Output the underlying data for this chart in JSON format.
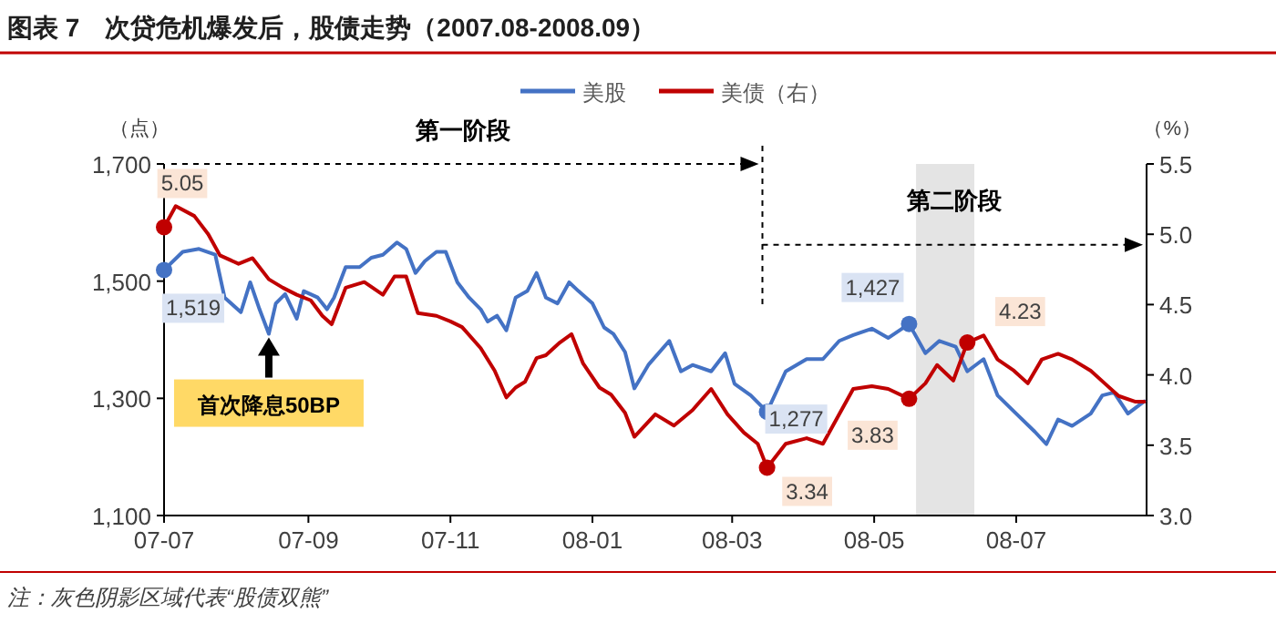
{
  "chart_data": {
    "type": "line",
    "title": "图表 7　次贷危机爆发后，股债走势（2007.08-2008.09）",
    "ylabel": "（点）",
    "y2label": "（%）",
    "xlim": [
      "2007-07-01",
      "2008-08-26"
    ],
    "xticks": [
      {
        "value": "2007-07-01",
        "label": "07-07"
      },
      {
        "value": "2007-09-01",
        "label": "07-09"
      },
      {
        "value": "2007-11-01",
        "label": "07-11"
      },
      {
        "value": "2008-01-01",
        "label": "08-01"
      },
      {
        "value": "2008-03-01",
        "label": "08-03"
      },
      {
        "value": "2008-05-01",
        "label": "08-05"
      },
      {
        "value": "2008-07-01",
        "label": "08-07"
      }
    ],
    "ylim": [
      1100,
      1700
    ],
    "yticks": [
      {
        "value": 1100,
        "label": "1,100"
      },
      {
        "value": 1300,
        "label": "1,300"
      },
      {
        "value": 1500,
        "label": "1,500"
      },
      {
        "value": 1700,
        "label": "1,700"
      }
    ],
    "y2lim": [
      3.0,
      5.5
    ],
    "y2ticks": [
      {
        "value": 3.0,
        "label": "3.0"
      },
      {
        "value": 3.5,
        "label": "3.5"
      },
      {
        "value": 4.0,
        "label": "4.0"
      },
      {
        "value": 4.5,
        "label": "4.5"
      },
      {
        "value": 5.0,
        "label": "5.0"
      },
      {
        "value": 5.5,
        "label": "5.5"
      }
    ],
    "grid": false,
    "legend": "top",
    "series": [
      {
        "name": "美股",
        "color": "#4472c4",
        "x": [
          "2007-07-01",
          "2007-07-09",
          "2007-07-16",
          "2007-07-23",
          "2007-07-27",
          "2007-08-03",
          "2007-08-07",
          "2007-08-11",
          "2007-08-15",
          "2007-08-18",
          "2007-08-22",
          "2007-08-27",
          "2007-08-30",
          "2007-09-05",
          "2007-09-09",
          "2007-09-12",
          "2007-09-17",
          "2007-09-23",
          "2007-09-28",
          "2007-10-03",
          "2007-10-09",
          "2007-10-13",
          "2007-10-17",
          "2007-10-21",
          "2007-10-26",
          "2007-10-30",
          "2007-11-04",
          "2007-11-09",
          "2007-11-14",
          "2007-11-17",
          "2007-11-21",
          "2007-11-25",
          "2007-11-29",
          "2007-12-04",
          "2007-12-08",
          "2007-12-12",
          "2007-12-17",
          "2007-12-22",
          "2007-12-26",
          "2008-01-01",
          "2008-01-06",
          "2008-01-10",
          "2008-01-15",
          "2008-01-19",
          "2008-01-25",
          "2008-02-03",
          "2008-02-08",
          "2008-02-13",
          "2008-02-21",
          "2008-02-27",
          "2008-03-02",
          "2008-03-09",
          "2008-03-16",
          "2008-03-24",
          "2008-04-02",
          "2008-04-09",
          "2008-04-16",
          "2008-04-22",
          "2008-04-30",
          "2008-05-07",
          "2008-05-16",
          "2008-05-23",
          "2008-05-29",
          "2008-06-05",
          "2008-06-10",
          "2008-06-17",
          "2008-06-23",
          "2008-07-01",
          "2008-07-09",
          "2008-07-14",
          "2008-07-19",
          "2008-07-25",
          "2008-08-02",
          "2008-08-07",
          "2008-08-12",
          "2008-08-18",
          "2008-08-25"
        ],
        "values": [
          1519,
          1550,
          1555,
          1545,
          1472,
          1447,
          1498,
          1452,
          1410,
          1462,
          1478,
          1436,
          1483,
          1472,
          1452,
          1472,
          1524,
          1524,
          1540,
          1545,
          1566,
          1555,
          1514,
          1534,
          1550,
          1550,
          1498,
          1472,
          1452,
          1431,
          1441,
          1416,
          1472,
          1483,
          1514,
          1472,
          1462,
          1498,
          1483,
          1462,
          1421,
          1410,
          1379,
          1317,
          1357,
          1398,
          1346,
          1357,
          1346,
          1377,
          1325,
          1305,
          1277,
          1346,
          1367,
          1367,
          1398,
          1408,
          1419,
          1403,
          1427,
          1377,
          1398,
          1388,
          1346,
          1367,
          1305,
          1274,
          1243,
          1222,
          1264,
          1253,
          1274,
          1305,
          1310,
          1274,
          1295
        ],
        "value_labels": [
          "1,519",
          null,
          null,
          null,
          null,
          null,
          null,
          null,
          null,
          null,
          null,
          null,
          null,
          null,
          null,
          null,
          null,
          null,
          null,
          null,
          null,
          null,
          null,
          null,
          null,
          null,
          null,
          null,
          null,
          null,
          null,
          null,
          null,
          null,
          null,
          null,
          null,
          null,
          null,
          null,
          null,
          null,
          null,
          null,
          null,
          null,
          null,
          null,
          null,
          null,
          null,
          null,
          "1,277",
          null,
          null,
          null,
          null,
          null,
          null,
          null,
          "1,427",
          null,
          null,
          null,
          null,
          null,
          null,
          null,
          null,
          null,
          null,
          null,
          null,
          null,
          null,
          null,
          null
        ]
      },
      {
        "name": "美债（右）",
        "color": "#c00000",
        "axis": "y2",
        "x": [
          "2007-07-01",
          "2007-07-06",
          "2007-07-14",
          "2007-07-20",
          "2007-07-25",
          "2007-08-02",
          "2007-08-08",
          "2007-08-15",
          "2007-08-21",
          "2007-08-27",
          "2007-09-02",
          "2007-09-07",
          "2007-09-11",
          "2007-09-17",
          "2007-09-25",
          "2007-10-03",
          "2007-10-08",
          "2007-10-13",
          "2007-10-18",
          "2007-10-26",
          "2007-11-01",
          "2007-11-06",
          "2007-11-14",
          "2007-11-20",
          "2007-11-25",
          "2007-11-29",
          "2007-12-03",
          "2007-12-08",
          "2007-12-12",
          "2007-12-18",
          "2007-12-23",
          "2007-12-28",
          "2008-01-04",
          "2008-01-09",
          "2008-01-15",
          "2008-01-19",
          "2008-01-28",
          "2008-02-05",
          "2008-02-13",
          "2008-02-21",
          "2008-02-28",
          "2008-03-06",
          "2008-03-12",
          "2008-03-16",
          "2008-03-24",
          "2008-04-02",
          "2008-04-09",
          "2008-04-16",
          "2008-04-22",
          "2008-04-30",
          "2008-05-07",
          "2008-05-16",
          "2008-05-23",
          "2008-05-28",
          "2008-06-04",
          "2008-06-10",
          "2008-06-17",
          "2008-06-23",
          "2008-06-30",
          "2008-07-06",
          "2008-07-12",
          "2008-07-19",
          "2008-07-25",
          "2008-08-02",
          "2008-08-08",
          "2008-08-14",
          "2008-08-21",
          "2008-08-25"
        ],
        "values": [
          5.05,
          5.2,
          5.13,
          5.0,
          4.85,
          4.79,
          4.83,
          4.68,
          4.62,
          4.57,
          4.53,
          4.42,
          4.36,
          4.62,
          4.66,
          4.57,
          4.7,
          4.7,
          4.44,
          4.42,
          4.38,
          4.34,
          4.19,
          4.03,
          3.84,
          3.91,
          3.95,
          4.12,
          4.14,
          4.23,
          4.29,
          4.08,
          3.91,
          3.86,
          3.73,
          3.56,
          3.72,
          3.64,
          3.75,
          3.9,
          3.72,
          3.59,
          3.51,
          3.34,
          3.51,
          3.55,
          3.51,
          3.72,
          3.9,
          3.92,
          3.9,
          3.83,
          3.94,
          4.07,
          3.96,
          4.23,
          4.28,
          4.11,
          4.03,
          3.94,
          4.11,
          4.15,
          4.11,
          4.03,
          3.94,
          3.85,
          3.81,
          3.81
        ],
        "value_labels": [
          "5.05",
          null,
          null,
          null,
          null,
          null,
          null,
          null,
          null,
          null,
          null,
          null,
          null,
          null,
          null,
          null,
          null,
          null,
          null,
          null,
          null,
          null,
          null,
          null,
          null,
          null,
          null,
          null,
          null,
          null,
          null,
          null,
          null,
          null,
          null,
          null,
          null,
          null,
          null,
          null,
          null,
          null,
          null,
          "3.34",
          null,
          null,
          null,
          null,
          null,
          null,
          null,
          "3.83",
          null,
          null,
          null,
          "4.23",
          null,
          null,
          null,
          null,
          null,
          null,
          null,
          null,
          null,
          null,
          null,
          null
        ]
      }
    ],
    "bands": [
      {
        "axis": "x",
        "from": "2008-05-19",
        "to": "2008-06-13",
        "color": "#e4e4e4"
      }
    ],
    "ref_lines": [
      {
        "axis": "x",
        "value": "2008-03-14",
        "line_style": "dashed"
      }
    ],
    "annotations": [
      "第一阶段",
      "第二阶段",
      {
        "text": "首次降息50BP",
        "x": "2007-08-15",
        "y": 1410
      },
      "注：灰色阴影区域代表“股债双熊”"
    ]
  }
}
